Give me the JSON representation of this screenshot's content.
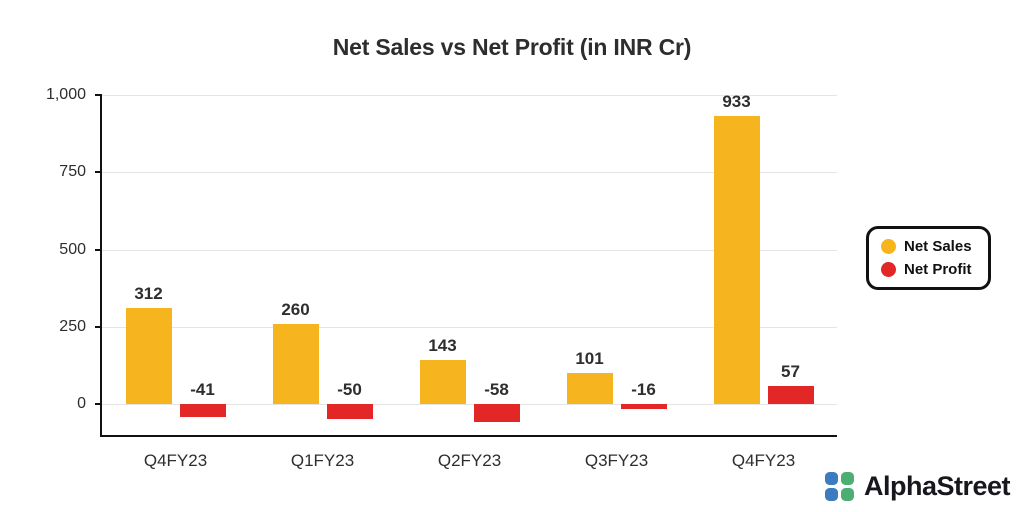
{
  "title": "Net Sales vs Net Profit (in INR Cr)",
  "chart_data": {
    "type": "bar",
    "categories": [
      "Q4FY23",
      "Q1FY23",
      "Q2FY23",
      "Q3FY23",
      "Q4FY23"
    ],
    "series": [
      {
        "name": "Net Sales",
        "color": "#F6B51E",
        "values": [
          312,
          260,
          143,
          101,
          933
        ]
      },
      {
        "name": "Net Profit",
        "color": "#E32726",
        "values": [
          -41,
          -50,
          -58,
          -16,
          57
        ]
      }
    ],
    "ylim": [
      -100,
      1000
    ],
    "yticks": [
      0,
      250,
      500,
      750,
      1000
    ],
    "ytick_labels": [
      "0",
      "250",
      "500",
      "750",
      "1,000"
    ],
    "grid": true,
    "legend_position": "right"
  },
  "brand": {
    "name": "AlphaStreet",
    "icon_colors": {
      "top_left": "#3D7BC0",
      "top_right": "#4CAE72",
      "bottom_left": "#3D7BC0",
      "bottom_right": "#4CAE72"
    }
  }
}
